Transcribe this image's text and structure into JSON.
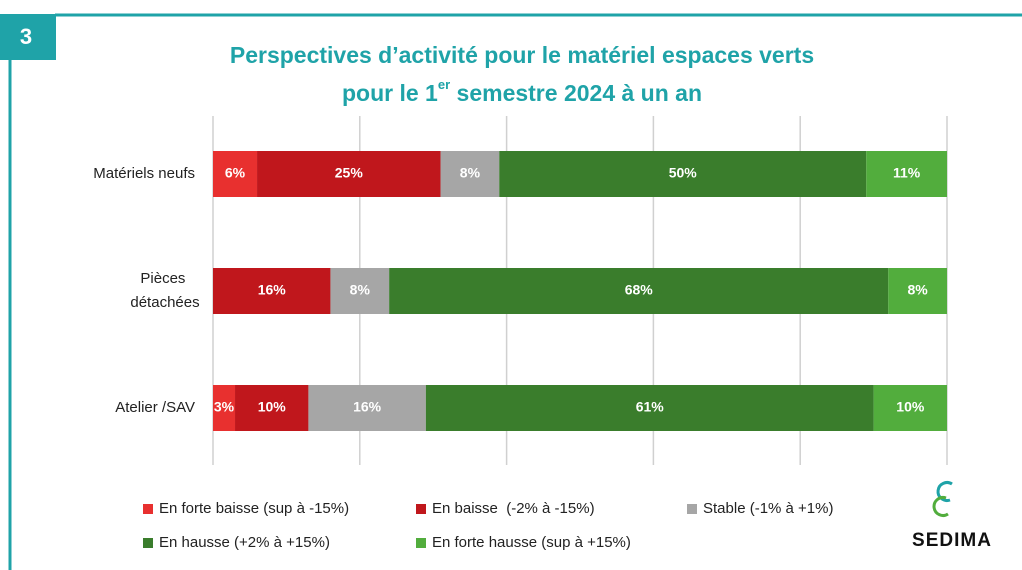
{
  "badge": "3",
  "logo": "SEDIMA",
  "chart_data": {
    "type": "bar",
    "orientation": "horizontal",
    "stacked": true,
    "title": [
      "Perspectives d’activité pour le matériel espaces verts",
      "pour le 1",
      "er",
      " semestre 2024 à un an"
    ],
    "categories": [
      "Matériels neufs",
      "Pièces détachées",
      "Atelier /SAV"
    ],
    "series": [
      {
        "name": "En forte baisse (sup à -15%)",
        "color": "#e8302f",
        "values": [
          6,
          null,
          3
        ],
        "value_labels": [
          "6%",
          null,
          "3%"
        ]
      },
      {
        "name": "En baisse  (-2% à -15%)",
        "color": "#c0171c",
        "values": [
          25,
          16,
          10
        ],
        "value_labels": [
          "25%",
          "16%",
          "10%"
        ]
      },
      {
        "name": "Stable (-1% à +1%)",
        "color": "#a6a6a6",
        "values": [
          8,
          8,
          16
        ],
        "value_labels": [
          "8%",
          "8%",
          "16%"
        ]
      },
      {
        "name": "En hausse (+2% à +15%)",
        "color": "#3a7d2c",
        "values": [
          50,
          68,
          61
        ],
        "value_labels": [
          "50%",
          "68%",
          "61%"
        ]
      },
      {
        "name": "En forte hausse (sup à +15%)",
        "color": "#52ad3d",
        "values": [
          11,
          8,
          10
        ],
        "value_labels": [
          "11%",
          "8%",
          "10%"
        ]
      }
    ],
    "xlim": [
      0,
      100
    ],
    "xticks": [
      0,
      20,
      40,
      60,
      80,
      100
    ],
    "grid": true,
    "legend": "bottom"
  }
}
